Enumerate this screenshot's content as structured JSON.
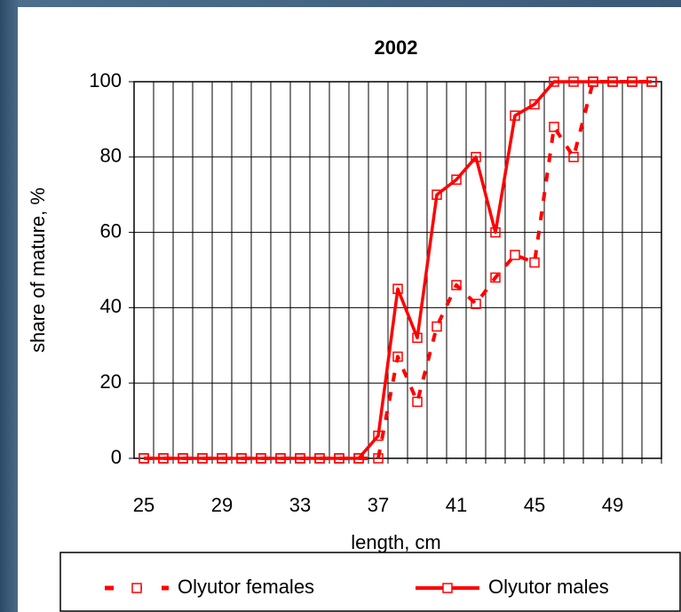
{
  "chart_data": {
    "type": "line",
    "title": "2002",
    "x_label": "length, cm",
    "y_label": "share of mature, %",
    "categories": [
      25,
      null,
      null,
      null,
      29,
      null,
      null,
      null,
      33,
      null,
      null,
      null,
      37,
      null,
      null,
      null,
      41,
      null,
      null,
      null,
      45,
      null,
      null,
      null,
      49,
      null,
      null
    ],
    "series": [
      {
        "name": "Olyutor females",
        "color": "#ff0000",
        "dashed": true,
        "values": [
          0,
          0,
          0,
          0,
          0,
          0,
          0,
          0,
          0,
          0,
          0,
          0,
          0,
          27,
          15,
          35,
          46,
          41,
          48,
          54,
          52,
          88,
          80,
          100,
          100,
          100,
          100
        ]
      },
      {
        "name": "Olyutor males",
        "color": "#ff0000",
        "dashed": false,
        "values": [
          0,
          0,
          0,
          0,
          0,
          0,
          0,
          0,
          0,
          0,
          0,
          0,
          6,
          45,
          32,
          70,
          74,
          80,
          60,
          91,
          94,
          100,
          100,
          100,
          100,
          100,
          100
        ]
      }
    ],
    "ylim": [
      0,
      100
    ],
    "yticks": [
      0,
      20,
      40,
      60,
      80,
      100
    ],
    "grid": true
  }
}
